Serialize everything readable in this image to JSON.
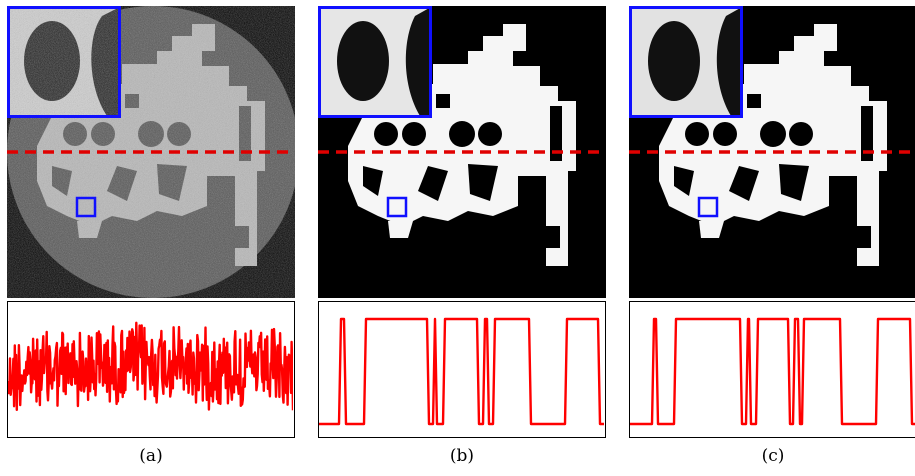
{
  "figure": {
    "panels": [
      {
        "id": "a",
        "caption": "(a)",
        "kind": "noisy"
      },
      {
        "id": "b",
        "caption": "(b)",
        "kind": "denoised"
      },
      {
        "id": "c",
        "caption": "(c)",
        "kind": "denoised"
      }
    ],
    "colors": {
      "profile_line": "#ff0000",
      "dashed_line": "#e00000",
      "zoom_box": "#1010ff",
      "phantom_noisy": "#b5b5b5",
      "phantom_clean": "#ffffff",
      "background": "#000000"
    }
  }
}
